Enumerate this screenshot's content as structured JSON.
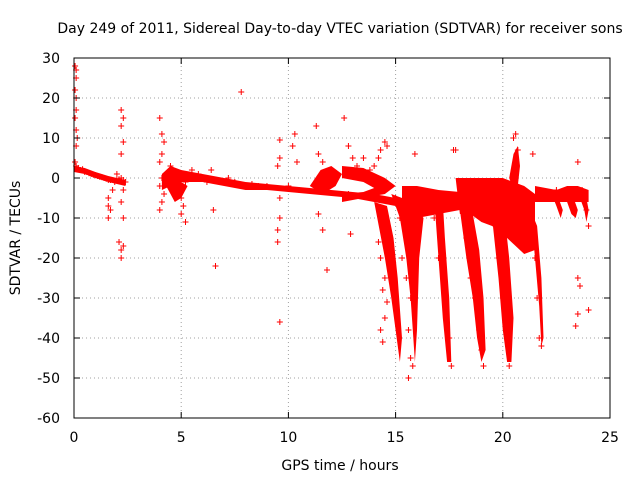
{
  "chart_data": {
    "type": "scatter",
    "title": "Day 249 of 2011, Sidereal Day-to-day VTEC variation (SDTVAR) for receiver sons",
    "xlabel": "GPS time / hours",
    "ylabel": "SDTVAR / TECUs",
    "xlim": [
      0,
      25
    ],
    "ylim": [
      -60,
      30
    ],
    "xticks": [
      0,
      5,
      10,
      15,
      20,
      25
    ],
    "yticks": [
      30,
      20,
      10,
      0,
      -10,
      -20,
      -30,
      -40,
      -50,
      -60
    ],
    "xtick_labels": [
      "0",
      "5",
      "10",
      "15",
      "20",
      "25"
    ],
    "ytick_labels": [
      "30",
      "20",
      "10",
      "0",
      "-10",
      "-20",
      "-30",
      "-40",
      "-50",
      "-60"
    ],
    "grid": true,
    "legend": "none",
    "marker": "+",
    "color": "#ff0000",
    "series": [
      {
        "name": "SDTVAR",
        "points": [
          [
            0.05,
            28
          ],
          [
            0.1,
            27
          ],
          [
            0.1,
            25
          ],
          [
            0.05,
            22
          ],
          [
            0.1,
            20
          ],
          [
            0.1,
            17
          ],
          [
            0.05,
            15
          ],
          [
            0.1,
            12
          ],
          [
            0.15,
            10
          ],
          [
            0.1,
            8
          ],
          [
            0.05,
            4
          ],
          [
            0.1,
            3
          ],
          [
            0.2,
            2.5
          ],
          [
            0.3,
            2
          ],
          [
            0.4,
            2.2
          ],
          [
            0.5,
            1.5
          ],
          [
            0.6,
            1.5
          ],
          [
            0.7,
            1.2
          ],
          [
            0.8,
            1
          ],
          [
            0.9,
            0.8
          ],
          [
            1.0,
            0.7
          ],
          [
            1.1,
            0.5
          ],
          [
            1.2,
            0.3
          ],
          [
            1.3,
            0.2
          ],
          [
            1.4,
            0
          ],
          [
            1.5,
            -0.2
          ],
          [
            1.6,
            -0.5
          ],
          [
            1.7,
            -0.5
          ],
          [
            1.6,
            -5
          ],
          [
            1.6,
            -7
          ],
          [
            1.7,
            -8
          ],
          [
            1.6,
            -10
          ],
          [
            1.8,
            -3
          ],
          [
            1.9,
            -1
          ],
          [
            2.0,
            -0.5
          ],
          [
            2.1,
            -0.3
          ],
          [
            2.2,
            0
          ],
          [
            2.3,
            -0.5
          ],
          [
            2.4,
            -1
          ],
          [
            2.2,
            17
          ],
          [
            2.3,
            15
          ],
          [
            2.2,
            13
          ],
          [
            2.3,
            9
          ],
          [
            2.2,
            6
          ],
          [
            2.0,
            1
          ],
          [
            2.3,
            -3
          ],
          [
            2.2,
            -6
          ],
          [
            2.3,
            -10
          ],
          [
            2.1,
            -16
          ],
          [
            2.2,
            -18
          ],
          [
            2.3,
            -17
          ],
          [
            2.2,
            -20
          ],
          [
            4.0,
            15
          ],
          [
            4.1,
            11
          ],
          [
            4.2,
            9
          ],
          [
            4.1,
            6
          ],
          [
            4.0,
            4
          ],
          [
            4.1,
            0
          ],
          [
            4.0,
            -2
          ],
          [
            4.2,
            -4
          ],
          [
            4.1,
            -6
          ],
          [
            4.0,
            -8
          ],
          [
            4.5,
            3
          ],
          [
            4.6,
            2
          ],
          [
            4.7,
            1
          ],
          [
            4.8,
            0.5
          ],
          [
            5.0,
            0
          ],
          [
            5.2,
            -1
          ],
          [
            5.0,
            -5
          ],
          [
            5.1,
            -7
          ],
          [
            5.0,
            -9
          ],
          [
            5.2,
            -11
          ],
          [
            5.5,
            2
          ],
          [
            5.8,
            1
          ],
          [
            6.0,
            0
          ],
          [
            6.2,
            -1
          ],
          [
            6.4,
            2
          ],
          [
            6.5,
            -8
          ],
          [
            6.6,
            -22
          ],
          [
            7.0,
            -1
          ],
          [
            7.2,
            0
          ],
          [
            7.5,
            -1
          ],
          [
            7.8,
            21.5
          ],
          [
            8.0,
            -2
          ],
          [
            8.3,
            -1.5
          ],
          [
            8.6,
            -2
          ],
          [
            9.0,
            -2
          ],
          [
            9.6,
            9.5
          ],
          [
            9.6,
            5
          ],
          [
            9.5,
            3
          ],
          [
            9.6,
            -5
          ],
          [
            9.6,
            -10
          ],
          [
            9.5,
            -13
          ],
          [
            9.5,
            -16
          ],
          [
            9.6,
            -36
          ],
          [
            10.3,
            11
          ],
          [
            10.2,
            8
          ],
          [
            10.4,
            4
          ],
          [
            10.0,
            -2
          ],
          [
            10.5,
            -3
          ],
          [
            11.3,
            13
          ],
          [
            11.4,
            6
          ],
          [
            11.6,
            4
          ],
          [
            11.5,
            -3
          ],
          [
            11.4,
            -9
          ],
          [
            11.6,
            -13
          ],
          [
            11.8,
            -23
          ],
          [
            12.6,
            15
          ],
          [
            12.8,
            8
          ],
          [
            13.0,
            5
          ],
          [
            12.7,
            1
          ],
          [
            13.2,
            3
          ],
          [
            12.8,
            -4
          ],
          [
            12.9,
            -14
          ],
          [
            13.5,
            5
          ],
          [
            13.8,
            2
          ],
          [
            14.0,
            3
          ],
          [
            14.2,
            5
          ],
          [
            14.3,
            7
          ],
          [
            14.5,
            9
          ],
          [
            14.6,
            8
          ],
          [
            14.2,
            -16
          ],
          [
            14.3,
            -20
          ],
          [
            14.5,
            -25
          ],
          [
            14.4,
            -28
          ],
          [
            14.6,
            -31
          ],
          [
            14.5,
            -35
          ],
          [
            14.3,
            -38
          ],
          [
            14.4,
            -41
          ],
          [
            15.0,
            -5
          ],
          [
            15.2,
            -10
          ],
          [
            15.3,
            -20
          ],
          [
            15.5,
            -25
          ],
          [
            15.7,
            -30
          ],
          [
            15.6,
            -38
          ],
          [
            15.7,
            -45
          ],
          [
            15.8,
            -47
          ],
          [
            15.6,
            -50
          ],
          [
            15.9,
            6
          ],
          [
            16.5,
            -5
          ],
          [
            16.8,
            -10
          ],
          [
            17.0,
            -20
          ],
          [
            17.3,
            -30
          ],
          [
            17.5,
            -40
          ],
          [
            17.6,
            -47
          ],
          [
            17.7,
            7
          ],
          [
            17.8,
            7
          ],
          [
            18.0,
            -5
          ],
          [
            18.3,
            -15
          ],
          [
            18.5,
            -25
          ],
          [
            18.7,
            -30
          ],
          [
            18.9,
            -38
          ],
          [
            19.0,
            -43
          ],
          [
            19.1,
            -47
          ],
          [
            19.5,
            -5
          ],
          [
            19.8,
            -20
          ],
          [
            20.0,
            -30
          ],
          [
            20.2,
            -40
          ],
          [
            20.3,
            -47
          ],
          [
            20.5,
            10
          ],
          [
            20.6,
            11
          ],
          [
            20.7,
            7
          ],
          [
            21.0,
            -4
          ],
          [
            21.3,
            -10
          ],
          [
            21.5,
            -20
          ],
          [
            21.6,
            -30
          ],
          [
            21.7,
            -40
          ],
          [
            21.8,
            -42
          ],
          [
            21.4,
            6
          ],
          [
            22.5,
            -3
          ],
          [
            22.8,
            -4
          ],
          [
            23.0,
            -4
          ],
          [
            23.2,
            -4
          ],
          [
            23.4,
            -3
          ],
          [
            23.5,
            4
          ],
          [
            23.5,
            -25
          ],
          [
            23.6,
            -27
          ],
          [
            23.5,
            -34
          ],
          [
            23.4,
            -37
          ],
          [
            23.7,
            -3
          ],
          [
            23.9,
            -8
          ],
          [
            24.0,
            -12
          ],
          [
            24.0,
            -33
          ]
        ]
      }
    ]
  }
}
